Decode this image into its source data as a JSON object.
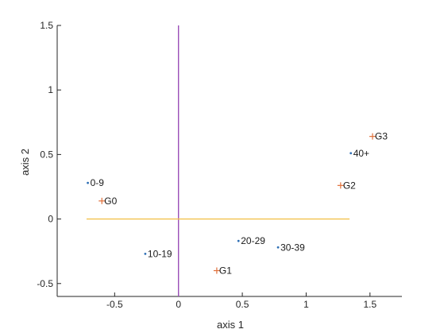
{
  "chart_data": {
    "type": "scatter",
    "title": "",
    "xlabel": "axis 1",
    "ylabel": "axis 2",
    "xlim": [
      -0.95,
      1.75
    ],
    "ylim": [
      -0.6,
      1.5
    ],
    "xticks": [
      -0.5,
      0,
      0.5,
      1,
      1.5
    ],
    "xtick_labels": [
      "-0.5",
      "0",
      "0.5",
      "1",
      "1.5"
    ],
    "yticks": [
      -0.5,
      0,
      0.5,
      1,
      1.5
    ],
    "ytick_labels": [
      "-0.5",
      "0",
      "0.5",
      "1",
      "1.5"
    ],
    "grid": false,
    "reference_lines": [
      {
        "orientation": "vertical",
        "x": 0,
        "y_range": [
          -0.6,
          1.5
        ],
        "color": "#9b4fb8"
      },
      {
        "orientation": "horizontal",
        "y": 0,
        "x_range": [
          -0.72,
          1.34
        ],
        "color": "#f2c14e"
      }
    ],
    "series": [
      {
        "marker": "dot",
        "color": "#2e6fb5",
        "points": [
          {
            "label": "0-9",
            "x": -0.71,
            "y": 0.28
          },
          {
            "label": "10-19",
            "x": -0.26,
            "y": -0.27
          },
          {
            "label": "20-29",
            "x": 0.47,
            "y": -0.17
          },
          {
            "label": "30-39",
            "x": 0.78,
            "y": -0.22
          },
          {
            "label": "40+",
            "x": 1.35,
            "y": 0.51
          }
        ]
      },
      {
        "marker": "plus",
        "color": "#e0703a",
        "points": [
          {
            "label": "G0",
            "x": -0.6,
            "y": 0.14
          },
          {
            "label": "G1",
            "x": 0.3,
            "y": -0.4
          },
          {
            "label": "G2",
            "x": 1.27,
            "y": 0.26
          },
          {
            "label": "G3",
            "x": 1.52,
            "y": 0.64
          }
        ]
      }
    ]
  }
}
